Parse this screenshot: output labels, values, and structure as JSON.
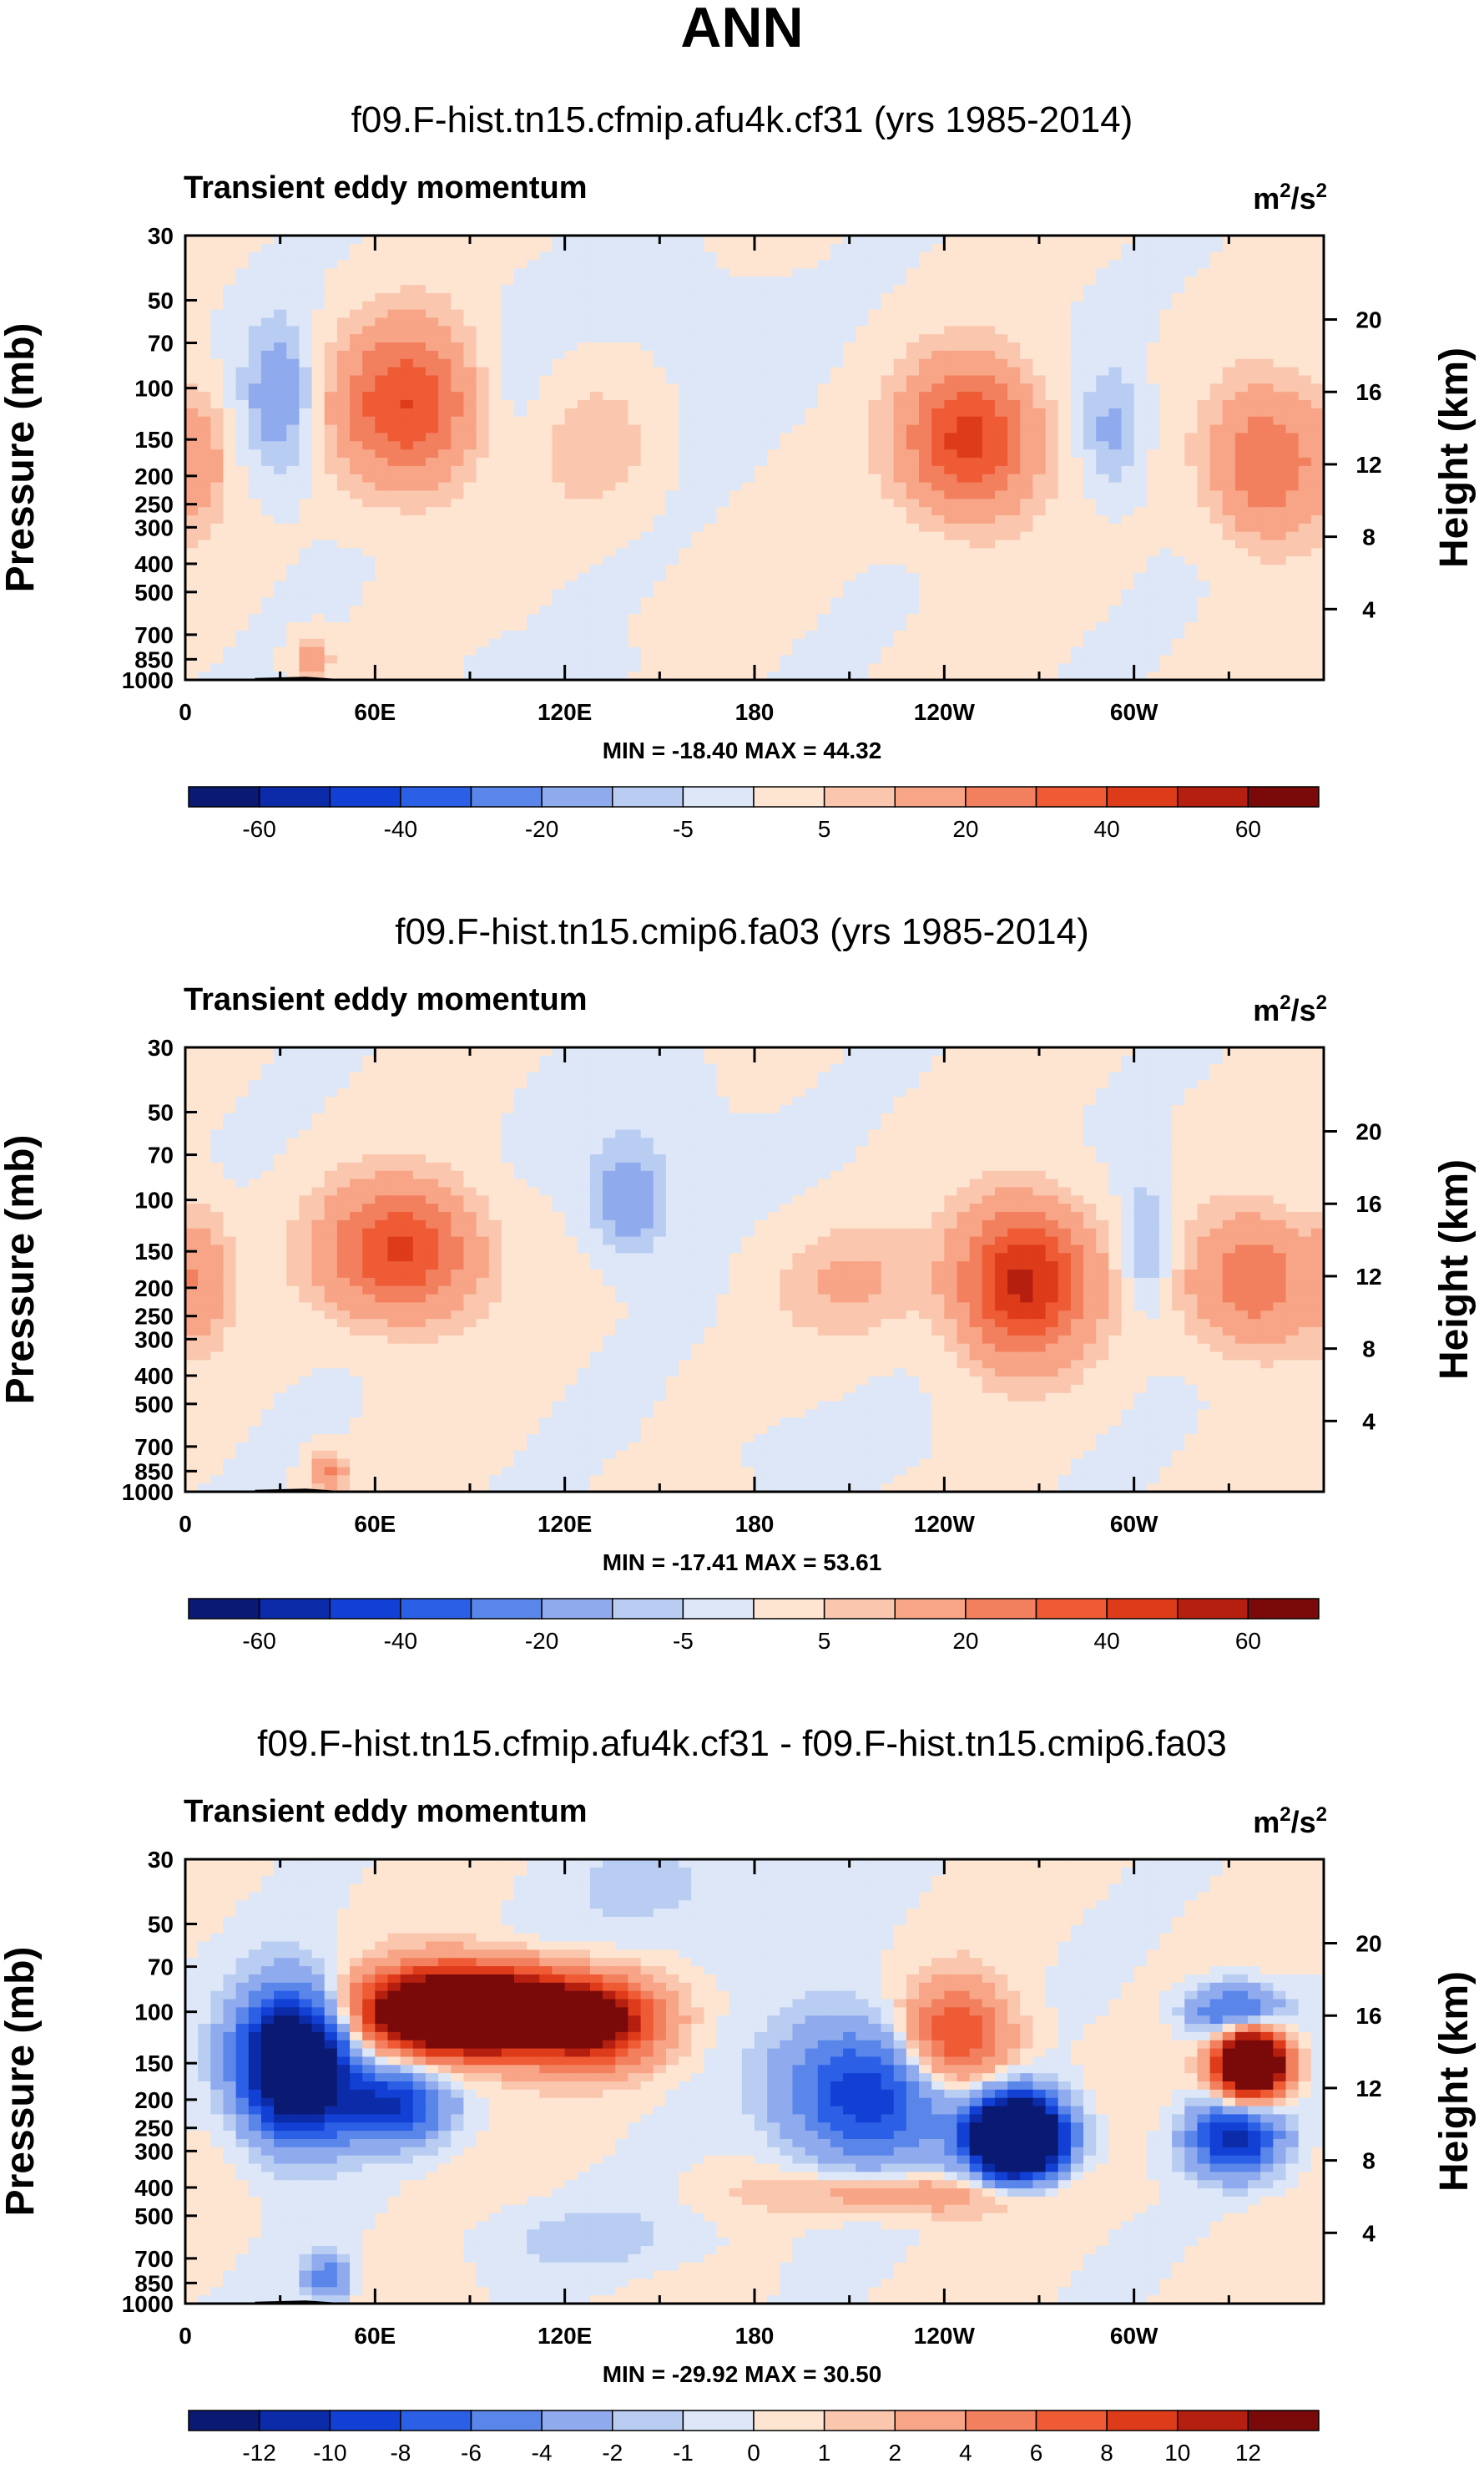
{
  "figure_title": "ANN",
  "colors": {
    "full_palette": [
      "#0a1a73",
      "#0b2ba8",
      "#1240d4",
      "#2b5fe6",
      "#5a86ea",
      "#8fabee",
      "#b9cdf2",
      "#dde7f7",
      "#fde5d2",
      "#fac6ae",
      "#f7a586",
      "#f2805e",
      "#ee5b35",
      "#de3b1a",
      "#b51f10",
      "#7a0a0a"
    ],
    "diff_palette": [
      "#0a1a73",
      "#0b2ba8",
      "#1240d4",
      "#2b5fe6",
      "#5a86ea",
      "#8fabee",
      "#b9cdf2",
      "#dde7f7",
      "#fde5d2",
      "#fac6ae",
      "#f7a586",
      "#f2805e",
      "#ee5b35",
      "#de3b1a",
      "#b51f10",
      "#7a0a0a"
    ],
    "topography": "#000000"
  },
  "chart_data": [
    {
      "type": "heatmap",
      "title": "f09.F-hist.tn15.cfmip.afu4k.cf31 (yrs 1985-2014)",
      "subtitle": "Transient eddy momentum",
      "units": "m²/s²",
      "units_base": "m",
      "units_sup1": "2",
      "units_mid": "/s",
      "units_sup2": "2",
      "ylabel": "Pressure (mb)",
      "ylabel2": "Height (km)",
      "x_ticks": [
        "0",
        "60E",
        "120E",
        "180",
        "120W",
        "60W"
      ],
      "x_tick_values": [
        0,
        60,
        120,
        180,
        240,
        300
      ],
      "xlim": [
        0,
        360
      ],
      "y_ticks": [
        "30",
        "50",
        "70",
        "100",
        "150",
        "200",
        "250",
        "300",
        "400",
        "500",
        "700",
        "850",
        "1000"
      ],
      "y_tick_values": [
        30,
        50,
        70,
        100,
        150,
        200,
        250,
        300,
        400,
        500,
        700,
        850,
        1000
      ],
      "ylim": [
        30,
        1000
      ],
      "height_ticks": [
        "20",
        "16",
        "12",
        "8",
        "4"
      ],
      "height_tick_values": [
        20,
        16,
        12,
        8,
        4
      ],
      "min_label": "MIN = -18.40",
      "max_label": "MAX =  44.32",
      "min": -18.4,
      "max": 44.32,
      "colorbar_labels": [
        "-60",
        "-40",
        "-20",
        "-5",
        "5",
        "20",
        "40",
        "60"
      ],
      "colorbar_levels": [
        -70,
        -60,
        -50,
        -40,
        -30,
        -20,
        -10,
        -5,
        0,
        5,
        10,
        20,
        30,
        40,
        50,
        60,
        70
      ],
      "features": [
        {
          "lon": 70,
          "p": 115,
          "amp": 40,
          "slon": 15,
          "sp": 0.42
        },
        {
          "lon": 248,
          "p": 150,
          "amp": 44,
          "slon": 14,
          "sp": 0.4
        },
        {
          "lon": 342,
          "p": 180,
          "amp": 30,
          "slon": 12,
          "sp": 0.4
        },
        {
          "lon": 5,
          "p": 170,
          "amp": 12,
          "slon": 6,
          "sp": 0.35
        },
        {
          "lon": 130,
          "p": 160,
          "amp": 8,
          "slon": 12,
          "sp": 0.35
        },
        {
          "lon": 30,
          "p": 110,
          "amp": -18,
          "slon": 8,
          "sp": 0.42
        },
        {
          "lon": 100,
          "p": 110,
          "amp": -4,
          "slon": 10,
          "sp": 0.5
        },
        {
          "lon": 293,
          "p": 140,
          "amp": -13,
          "slon": 7,
          "sp": 0.35
        },
        {
          "lon": 40,
          "p": 830,
          "amp": 15,
          "slon": 4,
          "sp": 0.12
        },
        {
          "lon": 160,
          "p": 60,
          "amp": -3,
          "slon": 20,
          "sp": 0.5
        },
        {
          "lon": 120,
          "p": 900,
          "amp": -2,
          "slon": 25,
          "sp": 0.15
        }
      ],
      "background": 1.5
    },
    {
      "type": "heatmap",
      "title": "f09.F-hist.tn15.cmip6.fa03 (yrs 1985-2014)",
      "subtitle": "Transient eddy momentum",
      "units": "m²/s²",
      "units_base": "m",
      "units_sup1": "2",
      "units_mid": "/s",
      "units_sup2": "2",
      "ylabel": "Pressure (mb)",
      "ylabel2": "Height (km)",
      "x_ticks": [
        "0",
        "60E",
        "120E",
        "180",
        "120W",
        "60W"
      ],
      "x_tick_values": [
        0,
        60,
        120,
        180,
        240,
        300
      ],
      "xlim": [
        0,
        360
      ],
      "y_ticks": [
        "30",
        "50",
        "70",
        "100",
        "150",
        "200",
        "250",
        "300",
        "400",
        "500",
        "700",
        "850",
        "1000"
      ],
      "y_tick_values": [
        30,
        50,
        70,
        100,
        150,
        200,
        250,
        300,
        400,
        500,
        700,
        850,
        1000
      ],
      "ylim": [
        30,
        1000
      ],
      "height_ticks": [
        "20",
        "16",
        "12",
        "8",
        "4"
      ],
      "height_tick_values": [
        20,
        16,
        12,
        8,
        4
      ],
      "min_label": "MIN = -17.41",
      "max_label": "MAX =  53.61",
      "min": -17.41,
      "max": 53.61,
      "colorbar_labels": [
        "-60",
        "-40",
        "-20",
        "-5",
        "5",
        "20",
        "40",
        "60"
      ],
      "colorbar_levels": [
        -70,
        -60,
        -50,
        -40,
        -30,
        -20,
        -10,
        -5,
        0,
        5,
        10,
        20,
        30,
        40,
        50,
        60,
        70
      ],
      "features": [
        {
          "lon": 68,
          "p": 150,
          "amp": 42,
          "slon": 16,
          "sp": 0.35
        },
        {
          "lon": 265,
          "p": 190,
          "amp": 53,
          "slon": 14,
          "sp": 0.4
        },
        {
          "lon": 338,
          "p": 190,
          "amp": 28,
          "slon": 14,
          "sp": 0.35
        },
        {
          "lon": 5,
          "p": 180,
          "amp": 16,
          "slon": 6,
          "sp": 0.35
        },
        {
          "lon": 210,
          "p": 190,
          "amp": 10,
          "slon": 16,
          "sp": 0.3
        },
        {
          "lon": 140,
          "p": 100,
          "amp": -17,
          "slon": 9,
          "sp": 0.3
        },
        {
          "lon": 304,
          "p": 140,
          "amp": -13,
          "slon": 6,
          "sp": 0.35
        },
        {
          "lon": 45,
          "p": 860,
          "amp": 22,
          "slon": 4,
          "sp": 0.1
        },
        {
          "lon": 150,
          "p": 50,
          "amp": -3,
          "slon": 20,
          "sp": 0.45
        },
        {
          "lon": 200,
          "p": 700,
          "amp": -2,
          "slon": 30,
          "sp": 0.2
        }
      ],
      "background": 1.5
    },
    {
      "type": "heatmap",
      "title": "f09.F-hist.tn15.cfmip.afu4k.cf31 - f09.F-hist.tn15.cmip6.fa03",
      "subtitle": "Transient eddy momentum",
      "units": "m²/s²",
      "units_base": "m",
      "units_sup1": "2",
      "units_mid": "/s",
      "units_sup2": "2",
      "ylabel": "Pressure (mb)",
      "ylabel2": "Height (km)",
      "x_ticks": [
        "0",
        "60E",
        "120E",
        "180",
        "120W",
        "60W"
      ],
      "x_tick_values": [
        0,
        60,
        120,
        180,
        240,
        300
      ],
      "xlim": [
        0,
        360
      ],
      "y_ticks": [
        "30",
        "50",
        "70",
        "100",
        "150",
        "200",
        "250",
        "300",
        "400",
        "500",
        "700",
        "850",
        "1000"
      ],
      "y_tick_values": [
        30,
        50,
        70,
        100,
        150,
        200,
        250,
        300,
        400,
        500,
        700,
        850,
        1000
      ],
      "ylim": [
        30,
        1000
      ],
      "height_ticks": [
        "20",
        "16",
        "12",
        "8",
        "4"
      ],
      "height_tick_values": [
        20,
        16,
        12,
        8,
        4
      ],
      "min_label": "MIN = -29.92",
      "max_label": "MAX =  30.50",
      "min": -29.92,
      "max": 30.5,
      "colorbar_labels": [
        "-12",
        "-10",
        "-8",
        "-6",
        "-4",
        "-2",
        "-1",
        "0",
        "1",
        "2",
        "4",
        "6",
        "8",
        "10",
        "12"
      ],
      "colorbar_levels": [
        -14,
        -12,
        -10,
        -8,
        -6,
        -4,
        -2,
        -1,
        0,
        1,
        2,
        4,
        6,
        8,
        10,
        12,
        14
      ],
      "features": [
        {
          "lon": 90,
          "p": 100,
          "amp": 30,
          "slon": 22,
          "sp": 0.22
        },
        {
          "lon": 130,
          "p": 110,
          "amp": 12,
          "slon": 14,
          "sp": 0.22
        },
        {
          "lon": 243,
          "p": 125,
          "amp": 9,
          "slon": 12,
          "sp": 0.28
        },
        {
          "lon": 337,
          "p": 150,
          "amp": 30,
          "slon": 7,
          "sp": 0.18
        },
        {
          "lon": 35,
          "p": 150,
          "amp": -22,
          "slon": 12,
          "sp": 0.38
        },
        {
          "lon": 65,
          "p": 210,
          "amp": -10,
          "slon": 12,
          "sp": 0.2
        },
        {
          "lon": 215,
          "p": 190,
          "amp": -10,
          "slon": 18,
          "sp": 0.38
        },
        {
          "lon": 263,
          "p": 270,
          "amp": -30,
          "slon": 10,
          "sp": 0.22
        },
        {
          "lon": 332,
          "p": 270,
          "amp": -11,
          "slon": 10,
          "sp": 0.2
        },
        {
          "lon": 332,
          "p": 100,
          "amp": -8,
          "slon": 10,
          "sp": 0.15
        },
        {
          "lon": 230,
          "p": 420,
          "amp": 4,
          "slon": 30,
          "sp": 0.12
        },
        {
          "lon": 45,
          "p": 820,
          "amp": -6,
          "slon": 5,
          "sp": 0.12
        },
        {
          "lon": 160,
          "p": 40,
          "amp": -1.5,
          "slon": 30,
          "sp": 0.4
        },
        {
          "lon": 130,
          "p": 600,
          "amp": -1.5,
          "slon": 30,
          "sp": 0.2
        }
      ],
      "background": 0.5
    }
  ]
}
